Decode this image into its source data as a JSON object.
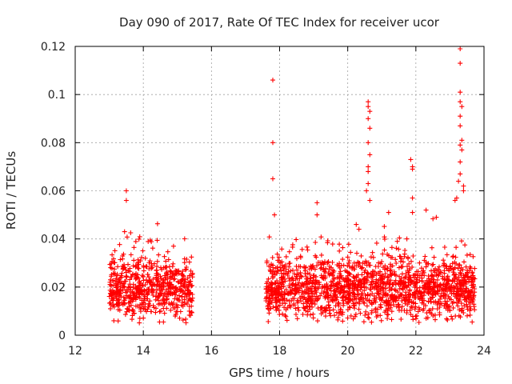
{
  "chart_data": {
    "type": "scatter",
    "title": "Day 090 of 2017, Rate Of TEC Index for receiver ucor",
    "xlabel": "GPS time / hours",
    "ylabel": "ROTI / TECUs",
    "xlim": [
      12,
      24
    ],
    "ylim": [
      0,
      0.12
    ],
    "grid": true,
    "marker": "+",
    "color": "#ff0000",
    "x_ticks": [
      "12",
      "14",
      "16",
      "18",
      "20",
      "22",
      "24"
    ],
    "y_ticks": [
      "0",
      "0.02",
      "0.04",
      "0.06",
      "0.08",
      "0.1",
      "0.12"
    ],
    "series": [
      {
        "name": "ROTI",
        "segments": [
          {
            "x_start": 13.0,
            "x_end": 15.45,
            "baseline_mean": 0.019,
            "baseline_spread": 0.0095
          },
          {
            "x_start": 17.6,
            "x_end": 23.75,
            "baseline_mean": 0.019,
            "baseline_spread": 0.0095
          }
        ],
        "outliers": [
          {
            "x": 13.5,
            "y": 0.06
          },
          {
            "x": 13.5,
            "y": 0.056
          },
          {
            "x": 13.45,
            "y": 0.043
          },
          {
            "x": 17.8,
            "y": 0.106
          },
          {
            "x": 17.8,
            "y": 0.08
          },
          {
            "x": 17.8,
            "y": 0.065
          },
          {
            "x": 17.85,
            "y": 0.05
          },
          {
            "x": 19.1,
            "y": 0.055
          },
          {
            "x": 19.1,
            "y": 0.05
          },
          {
            "x": 20.25,
            "y": 0.046
          },
          {
            "x": 20.6,
            "y": 0.097
          },
          {
            "x": 20.6,
            "y": 0.095
          },
          {
            "x": 20.65,
            "y": 0.093
          },
          {
            "x": 20.6,
            "y": 0.09
          },
          {
            "x": 20.65,
            "y": 0.086
          },
          {
            "x": 20.6,
            "y": 0.08
          },
          {
            "x": 20.65,
            "y": 0.075
          },
          {
            "x": 20.6,
            "y": 0.07
          },
          {
            "x": 20.6,
            "y": 0.068
          },
          {
            "x": 20.6,
            "y": 0.063
          },
          {
            "x": 20.55,
            "y": 0.06
          },
          {
            "x": 20.65,
            "y": 0.056
          },
          {
            "x": 21.2,
            "y": 0.051
          },
          {
            "x": 21.85,
            "y": 0.073
          },
          {
            "x": 21.9,
            "y": 0.07
          },
          {
            "x": 21.9,
            "y": 0.069
          },
          {
            "x": 21.9,
            "y": 0.057
          },
          {
            "x": 21.9,
            "y": 0.051
          },
          {
            "x": 22.3,
            "y": 0.052
          },
          {
            "x": 22.6,
            "y": 0.049
          },
          {
            "x": 23.3,
            "y": 0.119
          },
          {
            "x": 23.3,
            "y": 0.113
          },
          {
            "x": 23.3,
            "y": 0.101
          },
          {
            "x": 23.3,
            "y": 0.097
          },
          {
            "x": 23.35,
            "y": 0.095
          },
          {
            "x": 23.3,
            "y": 0.091
          },
          {
            "x": 23.3,
            "y": 0.087
          },
          {
            "x": 23.35,
            "y": 0.081
          },
          {
            "x": 23.3,
            "y": 0.079
          },
          {
            "x": 23.35,
            "y": 0.077
          },
          {
            "x": 23.3,
            "y": 0.072
          },
          {
            "x": 23.3,
            "y": 0.067
          },
          {
            "x": 23.25,
            "y": 0.064
          },
          {
            "x": 23.4,
            "y": 0.062
          },
          {
            "x": 23.4,
            "y": 0.06
          },
          {
            "x": 23.2,
            "y": 0.057
          },
          {
            "x": 23.15,
            "y": 0.056
          }
        ]
      }
    ]
  }
}
